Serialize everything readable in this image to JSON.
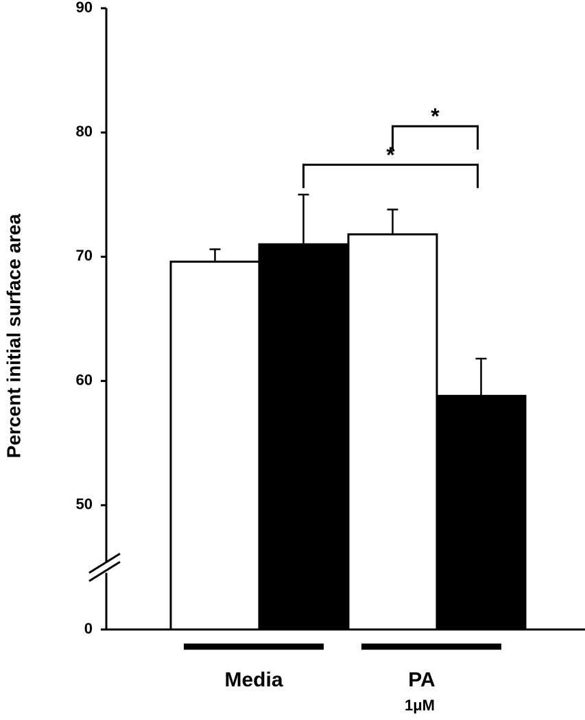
{
  "chart_data": {
    "type": "bar",
    "y_label": "Percent initial surface area",
    "categories": [
      "Media",
      "PA"
    ],
    "category_sublabels": [
      null,
      "1μM"
    ],
    "series": [
      {
        "color": "#ffffff",
        "values": [
          69.6,
          71.8
        ],
        "errors": [
          1.0,
          2.0
        ]
      },
      {
        "color": "#000000",
        "values": [
          71.0,
          58.8
        ],
        "errors": [
          4.0,
          3.0
        ]
      }
    ],
    "ylim": [
      0,
      90
    ],
    "yticks": [
      0,
      50,
      60,
      70,
      80,
      90
    ],
    "axis_break": true,
    "annotations": [
      {
        "text": "*",
        "from": [
          1,
          0
        ],
        "to": [
          1,
          1
        ],
        "y": 80.5
      },
      {
        "text": "*",
        "from": [
          0,
          1
        ],
        "to": [
          1,
          1
        ],
        "y": 77.4
      }
    ]
  }
}
